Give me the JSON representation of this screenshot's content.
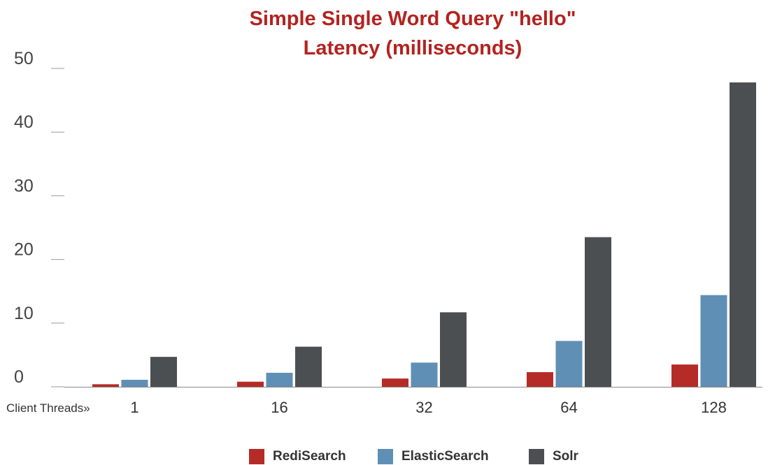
{
  "chart_data": {
    "type": "bar",
    "title": "Simple Single Word Query \"hello\"",
    "subtitle": "Latency (milliseconds)",
    "xlabel": "Client Threads»",
    "ylabel": "",
    "categories": [
      "1",
      "16",
      "32",
      "64",
      "128"
    ],
    "ylim": [
      0,
      50
    ],
    "yticks": [
      0,
      10,
      20,
      30,
      40,
      50
    ],
    "grid": false,
    "legend_position": "bottom-center",
    "series": [
      {
        "name": "RediSearch",
        "color": "#b52b27",
        "values": [
          0.4,
          0.8,
          1.3,
          2.3,
          3.5
        ]
      },
      {
        "name": "ElasticSearch",
        "color": "#5f8fb4",
        "values": [
          1.1,
          2.2,
          3.8,
          7.2,
          14.4
        ]
      },
      {
        "name": "Solr",
        "color": "#4c4f52",
        "values": [
          4.7,
          6.3,
          11.7,
          23.5,
          47.8
        ]
      }
    ]
  }
}
